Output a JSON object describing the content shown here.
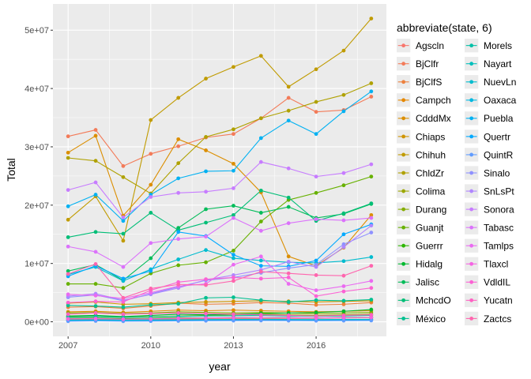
{
  "chart_data": {
    "type": "line",
    "xlabel": "year",
    "ylabel": "Total",
    "legend_title": "abbreviate(state, 6)",
    "legend_position": "right",
    "grid": true,
    "xlim": [
      2006.45,
      2018.55
    ],
    "ylim": [
      -2500000,
      54500000
    ],
    "x_ticks": [
      2007,
      2010,
      2013,
      2016
    ],
    "x_tick_labels": [
      "2007",
      "2010",
      "2013",
      "2016"
    ],
    "y_ticks": [
      0,
      10000000,
      20000000,
      30000000,
      40000000,
      50000000
    ],
    "y_tick_labels": [
      "0e+00",
      "1e+07",
      "2e+07",
      "3e+07",
      "4e+07",
      "5e+07"
    ],
    "x": [
      2007,
      2008,
      2009,
      2010,
      2011,
      2012,
      2013,
      2014,
      2015,
      2016,
      2017,
      2018
    ],
    "series": [
      {
        "name": "Agscln",
        "color": "#F8766D",
        "values": [
          400000,
          450000,
          380000,
          420000,
          460000,
          500000,
          520000,
          550000,
          580000,
          600000,
          650000,
          700000
        ]
      },
      {
        "name": "BjClfr",
        "color": "#F37B59",
        "values": [
          31800000,
          32900000,
          26700000,
          28800000,
          30100000,
          31600000,
          32200000,
          34900000,
          38400000,
          36000000,
          36300000,
          38600000
        ]
      },
      {
        "name": "BjClfS",
        "color": "#ED813E",
        "values": [
          2500000,
          2600000,
          2300000,
          2700000,
          3200000,
          3000000,
          3100000,
          3300000,
          3200000,
          2900000,
          3000000,
          3300000
        ]
      },
      {
        "name": "Campch",
        "color": "#E58700",
        "values": [
          1700000,
          1800000,
          1600000,
          1800000,
          2000000,
          1900000,
          2000000,
          1900000,
          1800000,
          1700000,
          1800000,
          1900000
        ]
      },
      {
        "name": "CdddMx",
        "color": "#DB8E00",
        "values": [
          29000000,
          31900000,
          18200000,
          23500000,
          31300000,
          29400000,
          27100000,
          22200000,
          11200000,
          9600000,
          12700000,
          18300000
        ]
      },
      {
        "name": "Chiaps",
        "color": "#CF9400",
        "values": [
          3200000,
          3400000,
          3000000,
          3100000,
          3300000,
          3400000,
          3500000,
          3600000,
          3500000,
          3400000,
          3500000,
          3600000
        ]
      },
      {
        "name": "Chihuh",
        "color": "#C09B00",
        "values": [
          17500000,
          21500000,
          13900000,
          34600000,
          38400000,
          41700000,
          43700000,
          45600000,
          40300000,
          43300000,
          46500000,
          52000000
        ]
      },
      {
        "name": "ChldZr",
        "color": "#AFA100",
        "values": [
          28100000,
          27600000,
          24800000,
          22000000,
          27200000,
          31700000,
          33000000,
          34900000,
          36200000,
          37700000,
          38900000,
          40900000
        ]
      },
      {
        "name": "Colima",
        "color": "#9CA700",
        "values": [
          900000,
          950000,
          800000,
          900000,
          1000000,
          1100000,
          1200000,
          1300000,
          1200000,
          1100000,
          1200000,
          1300000
        ]
      },
      {
        "name": "Durang",
        "color": "#85AD00",
        "values": [
          1500000,
          1600000,
          1400000,
          1500000,
          1700000,
          1600000,
          1500000,
          1600000,
          1500000,
          1400000,
          1500000,
          1600000
        ]
      },
      {
        "name": "Guanjt",
        "color": "#67B100",
        "values": [
          6500000,
          6500000,
          5800000,
          8300000,
          9700000,
          10200000,
          12200000,
          17200000,
          20900000,
          22100000,
          23400000,
          24900000
        ]
      },
      {
        "name": "Guerrr",
        "color": "#2CB600",
        "values": [
          600000,
          650000,
          550000,
          600000,
          700000,
          650000,
          700000,
          750000,
          700000,
          650000,
          700000,
          750000
        ]
      },
      {
        "name": "Hidalg",
        "color": "#00B92F",
        "values": [
          1000000,
          1100000,
          900000,
          1100000,
          1300000,
          1200000,
          1300000,
          1400000,
          1500000,
          1600000,
          1800000,
          2100000
        ]
      },
      {
        "name": "Jalisc",
        "color": "#00BC59",
        "values": [
          8700000,
          9800000,
          7100000,
          10900000,
          16100000,
          19300000,
          19900000,
          18700000,
          19700000,
          17800000,
          18500000,
          20200000
        ]
      },
      {
        "name": "MchcdO",
        "color": "#00BE77",
        "values": [
          14500000,
          15400000,
          15100000,
          18700000,
          15700000,
          17000000,
          18300000,
          22500000,
          21300000,
          17300000,
          18600000,
          20300000
        ]
      },
      {
        "name": "México",
        "color": "#00BF90",
        "values": [
          2800000,
          2700000,
          2500000,
          2900000,
          3100000,
          4100000,
          4200000,
          3700000,
          3400000,
          3700000,
          3600000,
          3800000
        ]
      },
      {
        "name": "Morels",
        "color": "#00C0A7",
        "values": [
          800000,
          900000,
          750000,
          850000,
          950000,
          1000000,
          1050000,
          1100000,
          1000000,
          950000,
          1000000,
          1100000
        ]
      },
      {
        "name": "Nayart",
        "color": "#00BFBC",
        "values": [
          300000,
          350000,
          300000,
          320000,
          350000,
          380000,
          400000,
          420000,
          400000,
          380000,
          400000,
          420000
        ]
      },
      {
        "name": "NuevLn",
        "color": "#00BCCF",
        "values": [
          8100000,
          9400000,
          7000000,
          9000000,
          10700000,
          12300000,
          10900000,
          10500000,
          10200000,
          10100000,
          10400000,
          11100000
        ]
      },
      {
        "name": "Oaxaca",
        "color": "#00B8E1",
        "values": [
          200000,
          250000,
          200000,
          220000,
          250000,
          280000,
          300000,
          320000,
          300000,
          280000,
          300000,
          320000
        ]
      },
      {
        "name": "Puebla",
        "color": "#00B1F2",
        "values": [
          19800000,
          21800000,
          17300000,
          21800000,
          24600000,
          25800000,
          25900000,
          31500000,
          34500000,
          32200000,
          36100000,
          39500000
        ]
      },
      {
        "name": "Quertr",
        "color": "#00A9FF",
        "values": [
          7800000,
          9600000,
          7400000,
          8700000,
          15400000,
          14700000,
          11500000,
          9600000,
          9500000,
          10500000,
          15000000,
          16700000
        ]
      },
      {
        "name": "QuintR",
        "color": "#619CFF",
        "values": [
          100000,
          150000,
          100000,
          120000,
          150000,
          180000,
          200000,
          220000,
          200000,
          180000,
          200000,
          220000
        ]
      },
      {
        "name": "Sinalo",
        "color": "#8F91FF",
        "values": [
          4200000,
          4600000,
          3600000,
          4800000,
          6000000,
          7100000,
          7600000,
          8400000,
          9200000,
          9800000,
          13300000,
          15300000
        ]
      },
      {
        "name": "SnLsPt",
        "color": "#B086FF",
        "values": [
          4400000,
          4800000,
          3700000,
          4700000,
          5800000,
          7200000,
          8000000,
          8900000,
          10300000,
          9400000,
          12800000,
          16500000
        ]
      },
      {
        "name": "Sonora",
        "color": "#C77CFF",
        "values": [
          22600000,
          23900000,
          17900000,
          21400000,
          22100000,
          22300000,
          22900000,
          27400000,
          26300000,
          24900000,
          25500000,
          27000000
        ]
      },
      {
        "name": "Tabasc",
        "color": "#DB72FB",
        "values": [
          12900000,
          12000000,
          9400000,
          13500000,
          14200000,
          14600000,
          17800000,
          15600000,
          16900000,
          17600000,
          17400000,
          17800000
        ]
      },
      {
        "name": "Tamlps",
        "color": "#EA6AF1",
        "values": [
          4700000,
          4500000,
          4000000,
          5000000,
          6100000,
          6500000,
          9800000,
          11200000,
          6500000,
          5400000,
          6100000,
          7000000
        ]
      },
      {
        "name": "Tlaxcl",
        "color": "#F564E3",
        "values": [
          500000,
          550000,
          450000,
          500000,
          600000,
          650000,
          700000,
          750000,
          700000,
          650000,
          700000,
          750000
        ]
      },
      {
        "name": "VdldIL",
        "color": "#FC61D4",
        "values": [
          3300000,
          3500000,
          3400000,
          5400000,
          6800000,
          7300000,
          7600000,
          7400000,
          7600000,
          4400000,
          5200000,
          5800000
        ]
      },
      {
        "name": "Yucatn",
        "color": "#FF61C3",
        "values": [
          1300000,
          1500000,
          1300000,
          1400000,
          1500000,
          1400000,
          1300000,
          1200000,
          1100000,
          1000000,
          1100000,
          1200000
        ]
      },
      {
        "name": "Zactcs",
        "color": "#FF65AE",
        "values": [
          8200000,
          9900000,
          4100000,
          5700000,
          6400000,
          6300000,
          7000000,
          8600000,
          8300000,
          8000000,
          7900000,
          9600000
        ]
      }
    ]
  }
}
